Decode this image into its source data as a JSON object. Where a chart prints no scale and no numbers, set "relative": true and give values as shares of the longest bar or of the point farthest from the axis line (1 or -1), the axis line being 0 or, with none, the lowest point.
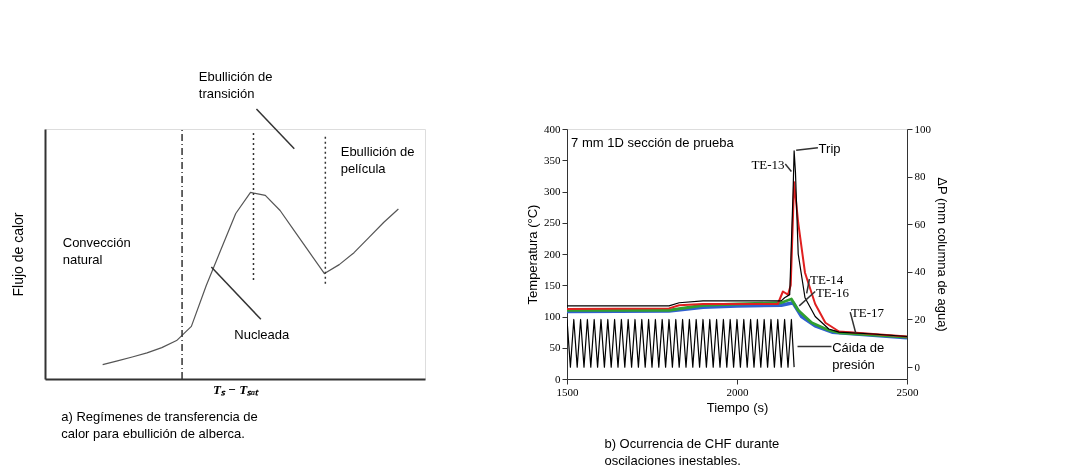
{
  "chart_data": [
    {
      "type": "line",
      "relative": true,
      "xlabel": "Tₛ − Tₛₐₜ",
      "ylabel": "Flujo de calor",
      "tick_labels": false,
      "grid": false,
      "marker": "none",
      "categories": [
        null,
        null,
        null,
        null,
        null,
        null,
        null,
        null,
        null,
        null,
        null,
        null,
        null,
        null,
        null,
        null,
        null,
        null,
        null,
        null,
        null
      ],
      "series": [
        {
          "color": "#555555",
          "values": [
            0.077,
            0.097,
            0.118,
            0.14,
            0.168,
            0.206,
            0.282,
            0.5,
            0.694,
            0.887,
            1.0,
            0.984,
            0.903,
            0.79,
            0.677,
            0.565,
            0.613,
            0.677,
            0.758,
            0.839,
            0.911
          ]
        }
      ],
      "annotations": [
        "Ebullición de transición",
        "Convección natural",
        "Nucleada",
        "Ebullición de película",
        "a) Regímenes de transferencia de calor para ebullición de alberca."
      ]
    },
    {
      "type": "line",
      "xlabel": "Tiempo (s)",
      "ylabel": "Temperatura (°C)",
      "y2label": "ΔP (mm columna de agua)",
      "grid": false,
      "marker": "none",
      "xlim": [
        1500,
        2500
      ],
      "xticks": [
        1500,
        2000,
        2500
      ],
      "ylim": [
        0,
        400
      ],
      "yticks": [
        0,
        50,
        100,
        150,
        200,
        250,
        300,
        350,
        400
      ],
      "y2lim": [
        -5,
        100
      ],
      "y2ticks": [
        0,
        20,
        40,
        60,
        80,
        100
      ],
      "series": [
        {
          "color": "#000000",
          "axis": "y2",
          "x": [
            1500,
            1510,
            1520,
            1530,
            1540,
            1550,
            1560,
            1570,
            1580,
            1590,
            1600,
            1610,
            1620,
            1630,
            1640,
            1650,
            1660,
            1670,
            1680,
            1690,
            1700,
            1710,
            1720,
            1730,
            1740,
            1750,
            1760,
            1770,
            1780,
            1790,
            1800,
            1810,
            1820,
            1830,
            1840,
            1850,
            1860,
            1870,
            1880,
            1890,
            1900,
            1910,
            1920,
            1930,
            1940,
            1950,
            1960,
            1970,
            1980,
            1990,
            2000,
            2010,
            2020,
            2030,
            2040,
            2050,
            2060,
            2070,
            2080,
            2090,
            2100,
            2110,
            2120,
            2130,
            2140,
            2150,
            2160,
            2168
          ],
          "values": [
            20,
            0,
            20,
            0,
            20,
            0,
            20,
            0,
            20,
            0,
            20,
            0,
            20,
            0,
            20,
            0,
            20,
            0,
            20,
            0,
            20,
            0,
            20,
            0,
            20,
            0,
            20,
            0,
            20,
            0,
            20,
            0,
            20,
            0,
            20,
            0,
            20,
            0,
            20,
            0,
            20,
            0,
            20,
            0,
            20,
            0,
            20,
            0,
            20,
            0,
            20,
            0,
            20,
            0,
            20,
            0,
            20,
            0,
            20,
            0,
            20,
            0,
            20,
            0,
            20,
            0,
            20,
            0
          ]
        },
        {
          "color": "#3060d0",
          "x": [
            1500,
            1800,
            1900,
            2000,
            2130,
            2165,
            2190,
            2230,
            2280,
            2500
          ],
          "values": [
            108,
            109,
            115,
            117,
            118,
            122,
            100,
            85,
            75,
            66
          ]
        },
        {
          "color": "#30a030",
          "x": [
            1500,
            1800,
            1900,
            2000,
            2130,
            2160,
            2180,
            2220,
            2270,
            2300,
            2500
          ],
          "values": [
            110,
            110,
            118,
            120,
            122,
            128,
            110,
            90,
            78,
            74,
            67
          ]
        },
        {
          "color": "#e02020",
          "x": [
            1500,
            1800,
            1830,
            1900,
            2000,
            2120,
            2135,
            2150,
            2158,
            2168,
            2180,
            2200,
            2230,
            2260,
            2300,
            2400,
            2500
          ],
          "values": [
            112,
            113,
            118,
            120,
            120,
            120,
            140,
            135,
            150,
            315,
            250,
            170,
            120,
            90,
            76,
            72,
            68
          ]
        },
        {
          "color": "#000000",
          "x": [
            1500,
            1800,
            1830,
            1900,
            2000,
            2130,
            2140,
            2155,
            2165,
            2168,
            2172,
            2180,
            2200,
            2230,
            2270,
            2300,
            2400,
            2500
          ],
          "values": [
            117,
            117,
            122,
            125,
            125,
            125,
            130,
            135,
            300,
            365,
            330,
            200,
            130,
            100,
            80,
            75,
            72,
            68
          ]
        }
      ],
      "annotations": [
        "7 mm 1D sección de prueba",
        {
          "text": "Trip",
          "x": 2174,
          "y": 366
        },
        {
          "text": "TE-13",
          "x": 2160,
          "y": 332
        },
        {
          "text": "TE-14",
          "x": 2205,
          "y": 137
        },
        {
          "text": "TE-16",
          "x": 2183,
          "y": 117
        },
        {
          "text": "TE-17",
          "x": 2349,
          "y": 74
        },
        {
          "text": "Cáida de presión",
          "x": 2178,
          "y": 52
        },
        "b) Ocurrencia de CHF durante oscilaciones inestables."
      ]
    }
  ]
}
